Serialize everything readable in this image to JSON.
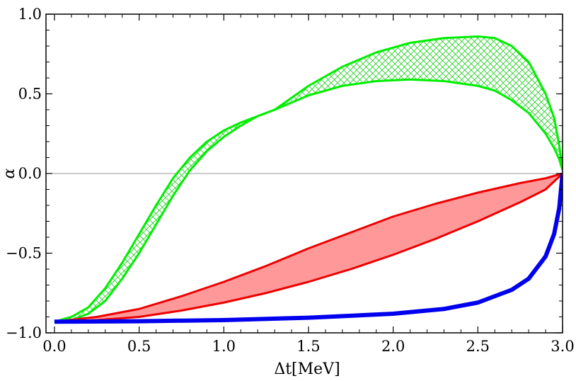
{
  "chart_data": {
    "type": "line",
    "title": "",
    "xlabel": "Δt[MeV]",
    "ylabel": "α",
    "xlim": [
      -0.05,
      3.0
    ],
    "ylim": [
      -1.0,
      1.0
    ],
    "x_ticks": [
      0.0,
      0.5,
      1.0,
      1.5,
      2.0,
      2.5,
      3.0
    ],
    "x_tick_labels": [
      "0.0",
      "0.5",
      "1.0",
      "1.5",
      "2.0",
      "2.5",
      "3.0"
    ],
    "y_ticks": [
      -1.0,
      -0.5,
      0.0,
      0.5,
      1.0
    ],
    "y_tick_labels": [
      "−1.0",
      "−0.5",
      "0.0",
      "0.5",
      "1.0"
    ],
    "reference_line": {
      "y": 0.0,
      "color": "#999999"
    },
    "bands": [
      {
        "name": "green-band",
        "color": "#00ee00",
        "fill": "crosshatch",
        "upper": {
          "x": [
            0.0,
            0.1,
            0.2,
            0.3,
            0.4,
            0.5,
            0.6,
            0.7,
            0.8,
            0.9,
            1.0,
            1.1,
            1.2,
            1.3,
            1.5,
            1.7,
            1.9,
            2.1,
            2.3,
            2.5,
            2.6,
            2.7,
            2.8,
            2.9,
            2.95,
            2.98,
            3.0
          ],
          "y": [
            -0.93,
            -0.9,
            -0.84,
            -0.72,
            -0.56,
            -0.38,
            -0.2,
            -0.03,
            0.1,
            0.2,
            0.27,
            0.32,
            0.36,
            0.4,
            0.55,
            0.67,
            0.76,
            0.82,
            0.85,
            0.86,
            0.85,
            0.8,
            0.7,
            0.5,
            0.35,
            0.18,
            0.02
          ]
        },
        "lower": {
          "x": [
            0.0,
            0.1,
            0.2,
            0.3,
            0.4,
            0.5,
            0.6,
            0.7,
            0.8,
            0.9,
            1.0,
            1.1,
            1.2,
            1.3,
            1.5,
            1.7,
            1.9,
            2.1,
            2.3,
            2.5,
            2.6,
            2.7,
            2.8,
            2.9,
            2.95,
            2.98,
            3.0
          ],
          "y": [
            -0.93,
            -0.92,
            -0.88,
            -0.8,
            -0.66,
            -0.5,
            -0.32,
            -0.14,
            0.02,
            0.14,
            0.23,
            0.3,
            0.36,
            0.4,
            0.49,
            0.55,
            0.58,
            0.59,
            0.58,
            0.55,
            0.52,
            0.46,
            0.38,
            0.25,
            0.16,
            0.09,
            0.02
          ]
        }
      },
      {
        "name": "red-band",
        "color": "#ee0000",
        "fill": "#ff9999",
        "upper": {
          "x": [
            0.0,
            0.25,
            0.5,
            0.75,
            1.0,
            1.25,
            1.5,
            1.75,
            2.0,
            2.25,
            2.5,
            2.75,
            2.9,
            3.0
          ],
          "y": [
            -0.93,
            -0.9,
            -0.85,
            -0.77,
            -0.68,
            -0.58,
            -0.47,
            -0.37,
            -0.27,
            -0.19,
            -0.12,
            -0.06,
            -0.03,
            0.0
          ]
        },
        "lower": {
          "x": [
            0.0,
            0.25,
            0.5,
            0.75,
            1.0,
            1.25,
            1.5,
            1.75,
            2.0,
            2.25,
            2.5,
            2.75,
            2.9,
            3.0
          ],
          "y": [
            -0.93,
            -0.92,
            -0.9,
            -0.86,
            -0.81,
            -0.75,
            -0.68,
            -0.6,
            -0.51,
            -0.41,
            -0.3,
            -0.18,
            -0.1,
            0.0
          ]
        }
      }
    ],
    "series": [
      {
        "name": "blue-curve",
        "color": "#0000ee",
        "x": [
          0.0,
          0.5,
          1.0,
          1.5,
          2.0,
          2.3,
          2.5,
          2.7,
          2.8,
          2.9,
          2.95,
          2.98,
          3.0
        ],
        "y": [
          -0.93,
          -0.927,
          -0.92,
          -0.905,
          -0.88,
          -0.85,
          -0.81,
          -0.73,
          -0.66,
          -0.52,
          -0.38,
          -0.22,
          0.0
        ]
      }
    ]
  }
}
